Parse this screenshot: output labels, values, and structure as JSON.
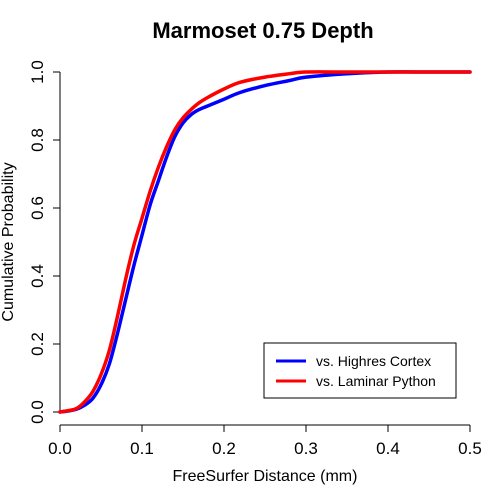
{
  "chart_data": {
    "type": "line",
    "title": "Marmoset 0.75 Depth",
    "xlabel": "FreeSurfer Distance (mm)",
    "ylabel": "Cumulative Probability",
    "xlim": [
      0,
      0.5
    ],
    "ylim": [
      0,
      1
    ],
    "x_ticks": [
      "0.0",
      "0.1",
      "0.2",
      "0.3",
      "0.4",
      "0.5"
    ],
    "y_ticks": [
      "0.0",
      "0.2",
      "0.4",
      "0.6",
      "0.8",
      "1.0"
    ],
    "grid": false,
    "legend_position": "bottom-right",
    "series": [
      {
        "name": "vs. Highres Cortex",
        "color": "#0000ff",
        "x": [
          0,
          0.01,
          0.02,
          0.03,
          0.04,
          0.05,
          0.06,
          0.07,
          0.08,
          0.09,
          0.1,
          0.11,
          0.12,
          0.13,
          0.14,
          0.15,
          0.16,
          0.17,
          0.18,
          0.2,
          0.22,
          0.25,
          0.28,
          0.3,
          0.35,
          0.4,
          0.45,
          0.5
        ],
        "y": [
          0.0,
          0.003,
          0.008,
          0.02,
          0.04,
          0.08,
          0.14,
          0.23,
          0.33,
          0.43,
          0.52,
          0.61,
          0.68,
          0.75,
          0.81,
          0.85,
          0.875,
          0.89,
          0.9,
          0.92,
          0.94,
          0.96,
          0.975,
          0.985,
          0.995,
          1.0,
          1.0,
          1.0
        ]
      },
      {
        "name": "vs. Laminar Python",
        "color": "#ff0000",
        "x": [
          0,
          0.01,
          0.02,
          0.03,
          0.04,
          0.05,
          0.06,
          0.07,
          0.08,
          0.09,
          0.1,
          0.11,
          0.12,
          0.13,
          0.14,
          0.15,
          0.16,
          0.17,
          0.18,
          0.2,
          0.22,
          0.25,
          0.28,
          0.3,
          0.35,
          0.4,
          0.45,
          0.5
        ],
        "y": [
          0.0,
          0.004,
          0.01,
          0.03,
          0.06,
          0.11,
          0.18,
          0.28,
          0.39,
          0.49,
          0.57,
          0.65,
          0.72,
          0.78,
          0.83,
          0.865,
          0.89,
          0.91,
          0.925,
          0.95,
          0.97,
          0.985,
          0.995,
          1.0,
          1.0,
          1.0,
          1.0,
          1.0
        ]
      }
    ]
  }
}
